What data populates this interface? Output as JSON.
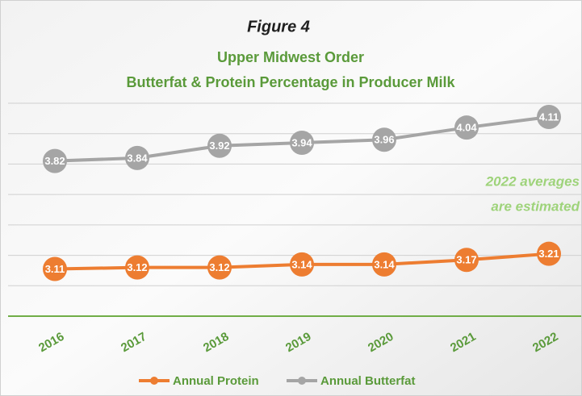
{
  "chart_data": {
    "type": "line",
    "title": "Figure 4",
    "subtitle": [
      "Upper Midwest Order",
      "Butterfat & Protein Percentage in Producer Milk"
    ],
    "annotation": [
      "2022 averages",
      "are estimated"
    ],
    "categories": [
      "2016",
      "2017",
      "2018",
      "2019",
      "2020",
      "2021",
      "2022"
    ],
    "series": [
      {
        "name": "Annual Protein",
        "color": "#ED7D31",
        "values": [
          3.11,
          3.12,
          3.12,
          3.14,
          3.14,
          3.17,
          3.21
        ]
      },
      {
        "name": "Annual Butterfat",
        "color": "#A5A5A5",
        "values": [
          3.82,
          3.84,
          3.92,
          3.94,
          3.96,
          4.04,
          4.11
        ]
      }
    ],
    "ylim": [
      2.8,
      4.2
    ],
    "yticks": [
      2.8,
      3.0,
      3.2,
      3.4,
      3.6,
      3.8,
      4.0,
      4.2
    ],
    "grid": true,
    "legend": "bottom"
  }
}
